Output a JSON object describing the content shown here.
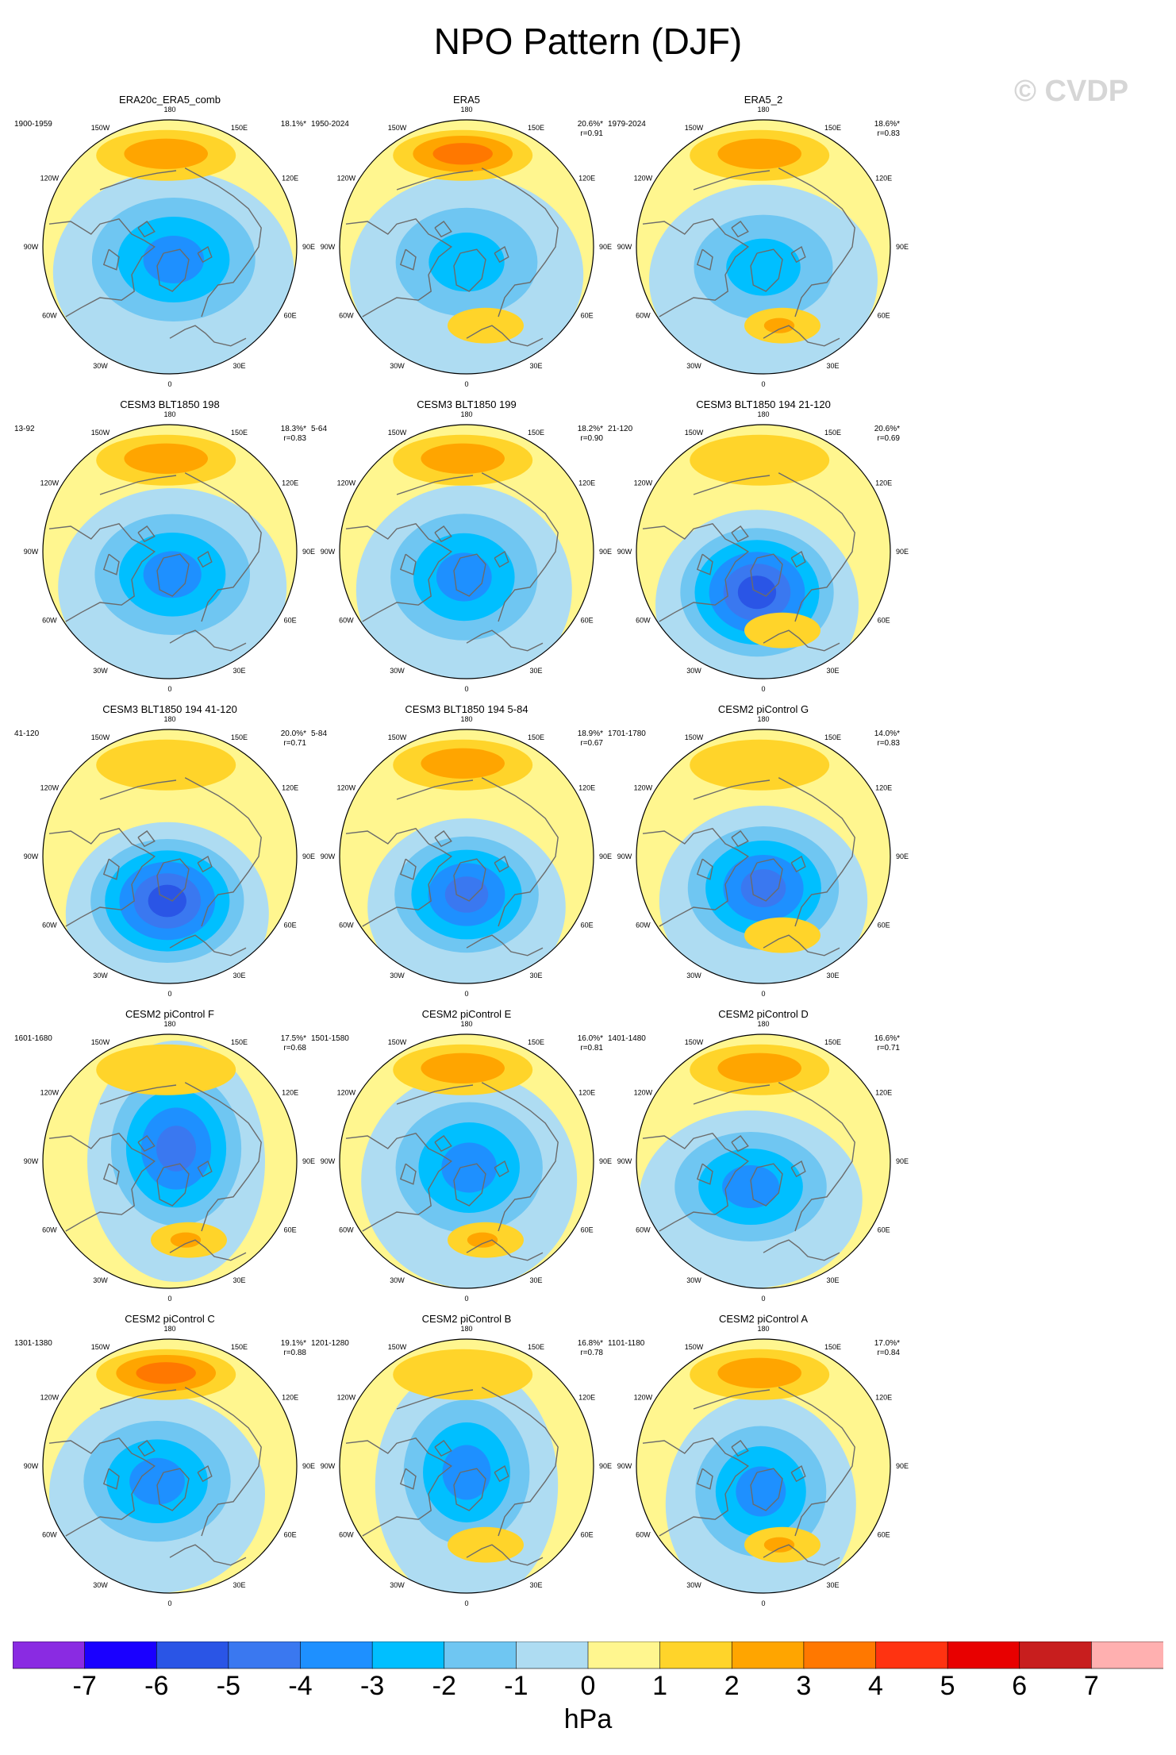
{
  "title": "NPO Pattern (DJF)",
  "watermark": "© CVDP",
  "units": "hPa",
  "lon_labels": {
    "n180": "180",
    "w150": "150W",
    "e150": "150E",
    "w120": "120W",
    "e120": "120E",
    "w90": "90W",
    "e90": "90E",
    "w60": "60W",
    "e60": "60E",
    "w30": "30W",
    "e30": "30E",
    "z0": "0"
  },
  "colorbar": {
    "colors": [
      "#8a2be2",
      "#1a00ff",
      "#2a55e6",
      "#3a78f0",
      "#1e90ff",
      "#00bfff",
      "#6fc6f2",
      "#aedcf2",
      "#fff68f",
      "#ffd42a",
      "#ffa500",
      "#ff7800",
      "#ff3311",
      "#e80000",
      "#c81e1e",
      "#ffb0b0"
    ],
    "labels": [
      "-7",
      "-6",
      "-5",
      "-4",
      "-3",
      "-2",
      "-1",
      "0",
      "1",
      "2",
      "3",
      "4",
      "5",
      "6",
      "7"
    ]
  },
  "panels": [
    {
      "title": "ERA20c_ERA5_comb",
      "years": "1900-1959",
      "pct": "18.1%*",
      "r": "",
      "center": [
        0.03,
        0.1
      ],
      "low": -3.2,
      "pac": 2.3,
      "atl": 0.3,
      "ext": [
        0.95,
        0.8
      ],
      "tilt": 0
    },
    {
      "title": "ERA5",
      "years": "1950-2024",
      "pct": "20.6%*",
      "r": "r=0.91",
      "center": [
        0.0,
        0.12
      ],
      "low": -3.0,
      "pac": 3.1,
      "atl": 1.6,
      "ext": [
        0.92,
        0.78
      ],
      "tilt": 0
    },
    {
      "title": "ERA5_2",
      "years": "1979-2024",
      "pct": "18.6%*",
      "r": "r=0.83",
      "center": [
        0.0,
        0.16
      ],
      "low": -3.0,
      "pac": 2.5,
      "atl": 2.0,
      "ext": [
        0.9,
        0.75
      ],
      "tilt": 0
    },
    {
      "title": "CESM3 BLT1850 198",
      "years": "13-92",
      "pct": "18.3%*",
      "r": "r=0.83",
      "center": [
        0.02,
        0.18
      ],
      "low": -3.3,
      "pac": 2.6,
      "atl": 0.2,
      "ext": [
        0.9,
        0.78
      ],
      "tilt": 0
    },
    {
      "title": "CESM3 BLT1850 199",
      "years": "5-64",
      "pct": "18.2%*",
      "r": "r=0.90",
      "center": [
        -0.02,
        0.2
      ],
      "low": -4.0,
      "pac": 2.0,
      "atl": 0.3,
      "ext": [
        0.85,
        0.82
      ],
      "tilt": 0
    },
    {
      "title": "CESM3 BLT1850 194 21-120",
      "years": "21-120",
      "pct": "20.6%*",
      "r": "r=0.69",
      "center": [
        -0.05,
        0.32
      ],
      "low": -5.2,
      "pac": 1.6,
      "atl": 1.2,
      "ext": [
        0.8,
        0.75
      ],
      "tilt": 0
    },
    {
      "title": "CESM3 BLT1850 194 41-120",
      "years": "41-120",
      "pct": "20.0%*",
      "r": "r=0.71",
      "center": [
        -0.02,
        0.35
      ],
      "low": -5.4,
      "pac": 1.9,
      "atl": 0.3,
      "ext": [
        0.8,
        0.72
      ],
      "tilt": 0
    },
    {
      "title": "CESM3 BLT1850 194 5-84",
      "years": "5-84",
      "pct": "18.9%*",
      "r": "r=0.67",
      "center": [
        0.0,
        0.3
      ],
      "low": -4.5,
      "pac": 2.3,
      "atl": 0.3,
      "ext": [
        0.78,
        0.7
      ],
      "tilt": 0
    },
    {
      "title": "CESM2 piControl G",
      "years": "1701-1780",
      "pct": "14.0%*",
      "r": "r=0.83",
      "center": [
        0.0,
        0.25
      ],
      "low": -4.3,
      "pac": 1.8,
      "atl": 1.5,
      "ext": [
        0.82,
        0.75
      ],
      "tilt": 0
    },
    {
      "title": "CESM2 piControl F",
      "years": "1601-1680",
      "pct": "17.5%*",
      "r": "r=0.68",
      "center": [
        0.05,
        -0.1
      ],
      "low": -4.2,
      "pac": 0.8,
      "atl": 2.5,
      "ext": [
        0.7,
        0.95
      ],
      "tilt": 0
    },
    {
      "title": "CESM2 piControl E",
      "years": "1501-1580",
      "pct": "16.0%*",
      "r": "r=0.81",
      "center": [
        0.02,
        0.05
      ],
      "low": -3.4,
      "pac": 2.2,
      "atl": 2.0,
      "ext": [
        0.85,
        0.85
      ],
      "tilt": 0
    },
    {
      "title": "CESM2 piControl D",
      "years": "1401-1480",
      "pct": "16.6%*",
      "r": "r=0.71",
      "center": [
        -0.1,
        0.2
      ],
      "low": -3.6,
      "pac": 2.2,
      "atl": 0.6,
      "ext": [
        0.88,
        0.7
      ],
      "tilt": 0
    },
    {
      "title": "CESM2 piControl C",
      "years": "1301-1380",
      "pct": "19.1%*",
      "r": "r=0.88",
      "center": [
        -0.1,
        0.12
      ],
      "low": -3.2,
      "pac": 3.0,
      "atl": 0.4,
      "ext": [
        0.85,
        0.78
      ],
      "tilt": 0
    },
    {
      "title": "CESM2 piControl B",
      "years": "1201-1280",
      "pct": "16.8%*",
      "r": "r=0.78",
      "center": [
        0.0,
        0.05
      ],
      "low": -3.8,
      "pac": 1.4,
      "atl": 1.4,
      "ext": [
        0.72,
        0.95
      ],
      "tilt": 0
    },
    {
      "title": "CESM2 piControl A",
      "years": "1101-1180",
      "pct": "17.0%*",
      "r": "r=0.84",
      "center": [
        -0.02,
        0.2
      ],
      "low": -4.0,
      "pac": 2.2,
      "atl": 2.0,
      "ext": [
        0.75,
        0.85
      ],
      "tilt": 0
    }
  ]
}
